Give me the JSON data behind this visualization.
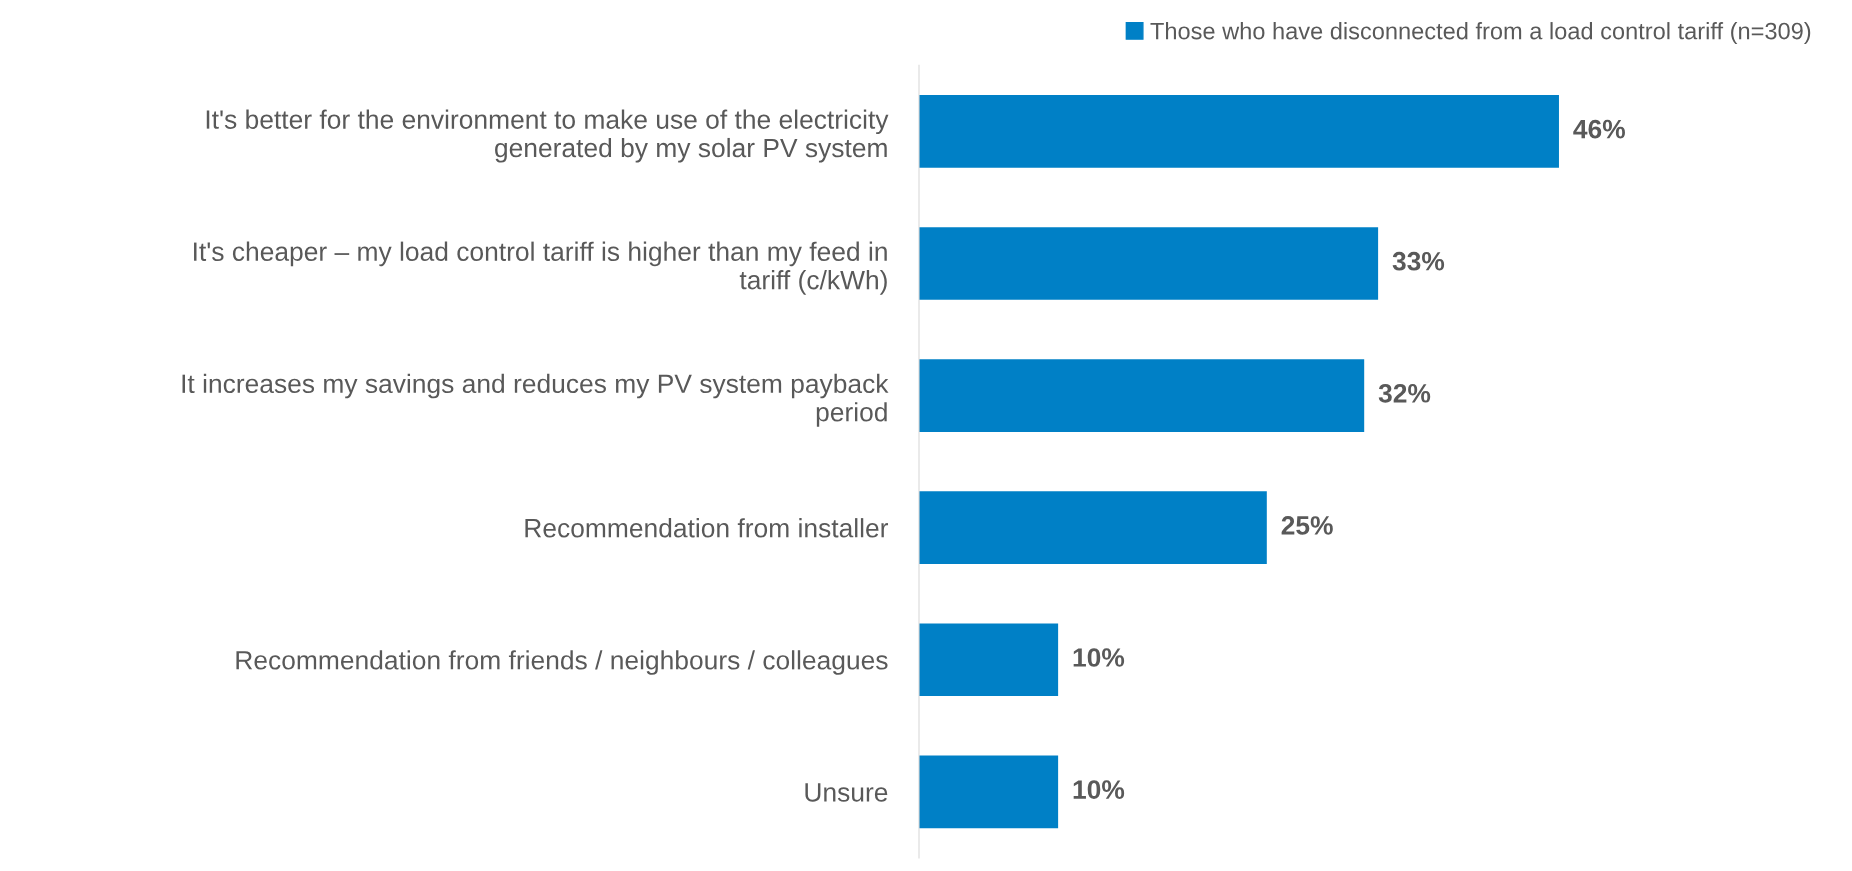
{
  "chart_data": {
    "type": "bar",
    "orientation": "horizontal",
    "categories": [
      "It's better for the environment to make use of the electricity\ngenerated by my solar PV system",
      "It's cheaper – my load control tariff is higher than my feed in\ntariff (c/kWh)",
      "It increases my savings and reduces my PV system payback\nperiod",
      "Recommendation from installer",
      "Recommendation from friends / neighbours / colleagues",
      "Unsure"
    ],
    "series": [
      {
        "name": "Those who have disconnected from a load control tariff (n=309)",
        "color": "#0080c6",
        "values": [
          46,
          33,
          32,
          25,
          10,
          10
        ],
        "value_labels": [
          "46%",
          "33%",
          "32%",
          "25%",
          "10%",
          "10%"
        ]
      }
    ],
    "legend": "top right"
  }
}
